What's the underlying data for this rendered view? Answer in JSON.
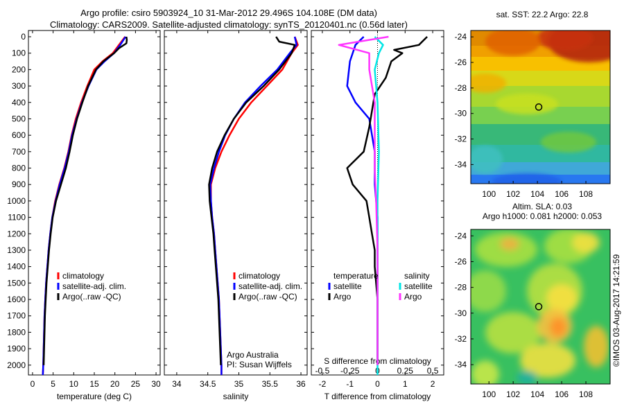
{
  "titles": {
    "line1": "Argo profile: csiro 5903924_10 31-Mar-2012 29.496S 104.108E (DM data)",
    "line2": "Climatology: CARS2009. Satellite-adjusted climatology: synTS_20120401.nc (0.56d later)"
  },
  "colors": {
    "climatology": "#ff0000",
    "satellite": "#0000ff",
    "argo": "#000000",
    "salinity_sat": "#00e5e5",
    "salinity_argo": "#ff33ff"
  },
  "chart_data": [
    {
      "type": "line",
      "name": "temperature-profile",
      "xlabel": "temperature (deg C)",
      "ylabel": "",
      "xlim": [
        -1,
        31
      ],
      "ylim": [
        2060,
        0
      ],
      "xticks": [
        0,
        5,
        10,
        15,
        20,
        25,
        30
      ],
      "yticks": [
        0,
        100,
        200,
        300,
        400,
        500,
        600,
        700,
        800,
        900,
        1000,
        1100,
        1200,
        1300,
        1400,
        1500,
        1600,
        1700,
        1800,
        1900,
        2000
      ],
      "legend": [
        "climatology",
        "satellite-adj. clim.",
        "Argo(..raw -QC)"
      ],
      "series": [
        {
          "name": "climatology",
          "color": "#ff0000",
          "points": [
            [
              22.5,
              0
            ],
            [
              21,
              50
            ],
            [
              19.5,
              100
            ],
            [
              17,
              150
            ],
            [
              15,
              200
            ],
            [
              13.3,
              300
            ],
            [
              11.8,
              400
            ],
            [
              10.5,
              500
            ],
            [
              9.5,
              600
            ],
            [
              8.7,
              700
            ],
            [
              7.7,
              800
            ],
            [
              6.5,
              900
            ],
            [
              5.5,
              1000
            ],
            [
              4.8,
              1100
            ],
            [
              4.3,
              1200
            ],
            [
              3.9,
              1300
            ],
            [
              3.6,
              1400
            ],
            [
              3.3,
              1500
            ],
            [
              3.1,
              1600
            ],
            [
              2.9,
              1700
            ],
            [
              2.8,
              1800
            ],
            [
              2.7,
              1900
            ],
            [
              2.6,
              2000
            ],
            [
              2.5,
              2060
            ]
          ]
        },
        {
          "name": "satellite-adj. clim.",
          "color": "#0000ff",
          "points": [
            [
              22.6,
              0
            ],
            [
              21.3,
              50
            ],
            [
              19.8,
              100
            ],
            [
              17.5,
              150
            ],
            [
              15.5,
              200
            ],
            [
              13.6,
              300
            ],
            [
              12,
              400
            ],
            [
              10.7,
              500
            ],
            [
              9.6,
              600
            ],
            [
              8.8,
              700
            ],
            [
              7.8,
              800
            ],
            [
              6.6,
              900
            ],
            [
              5.6,
              1000
            ],
            [
              4.8,
              1100
            ],
            [
              4.3,
              1200
            ],
            [
              3.9,
              1300
            ],
            [
              3.6,
              1400
            ],
            [
              3.3,
              1500
            ],
            [
              3.1,
              1600
            ],
            [
              2.9,
              1700
            ],
            [
              2.8,
              1800
            ],
            [
              2.7,
              1900
            ],
            [
              2.6,
              2000
            ],
            [
              2.5,
              2060
            ]
          ]
        },
        {
          "name": "Argo(..raw -QC)",
          "color": "#000000",
          "points": [
            [
              22.8,
              0
            ],
            [
              22.9,
              20
            ],
            [
              22.8,
              40
            ],
            [
              21,
              70
            ],
            [
              19.8,
              100
            ],
            [
              17.2,
              150
            ],
            [
              15.4,
              200
            ],
            [
              13.5,
              300
            ],
            [
              12.1,
              400
            ],
            [
              10.8,
              500
            ],
            [
              9.8,
              600
            ],
            [
              9,
              700
            ],
            [
              8.1,
              800
            ],
            [
              6.9,
              900
            ],
            [
              5.7,
              1000
            ],
            [
              4.9,
              1100
            ],
            [
              4.4,
              1200
            ],
            [
              4,
              1300
            ],
            [
              3.7,
              1400
            ],
            [
              3.4,
              1500
            ],
            [
              3.2,
              1600
            ],
            [
              3,
              1700
            ],
            [
              2.9,
              1800
            ],
            [
              2.8,
              1900
            ],
            [
              2.7,
              2000
            ]
          ]
        }
      ]
    },
    {
      "type": "line",
      "name": "salinity-profile",
      "xlabel": "salinity",
      "xlim": [
        33.8,
        36.1
      ],
      "ylim": [
        2060,
        0
      ],
      "xticks": [
        34,
        34.5,
        35,
        35.5,
        36
      ],
      "xtick_labels": [
        "34",
        "34.5",
        "35",
        "35.5",
        "36"
      ],
      "legend": [
        "climatology",
        "satellite-adj. clim.",
        "Argo(..raw -QC)"
      ],
      "annotation": [
        "Argo Australia",
        "PI: Susan Wijffels"
      ],
      "series": [
        {
          "name": "climatology",
          "color": "#ff0000",
          "points": [
            [
              35.9,
              0
            ],
            [
              35.95,
              50
            ],
            [
              35.85,
              100
            ],
            [
              35.7,
              200
            ],
            [
              35.45,
              300
            ],
            [
              35.2,
              400
            ],
            [
              35,
              500
            ],
            [
              34.85,
              600
            ],
            [
              34.72,
              700
            ],
            [
              34.62,
              800
            ],
            [
              34.55,
              900
            ],
            [
              34.55,
              1000
            ],
            [
              34.57,
              1100
            ],
            [
              34.6,
              1200
            ],
            [
              34.62,
              1300
            ],
            [
              34.64,
              1400
            ],
            [
              34.66,
              1500
            ],
            [
              34.68,
              1600
            ],
            [
              34.69,
              1700
            ],
            [
              34.7,
              1800
            ],
            [
              34.71,
              1900
            ],
            [
              34.72,
              2000
            ],
            [
              34.72,
              2060
            ]
          ]
        },
        {
          "name": "satellite-adj. clim.",
          "color": "#0000ff",
          "points": [
            [
              35.9,
              0
            ],
            [
              35.93,
              50
            ],
            [
              35.82,
              100
            ],
            [
              35.62,
              200
            ],
            [
              35.35,
              300
            ],
            [
              35.1,
              400
            ],
            [
              34.92,
              500
            ],
            [
              34.78,
              600
            ],
            [
              34.68,
              700
            ],
            [
              34.6,
              800
            ],
            [
              34.54,
              900
            ],
            [
              34.55,
              1000
            ],
            [
              34.57,
              1100
            ],
            [
              34.6,
              1200
            ],
            [
              34.62,
              1300
            ],
            [
              34.64,
              1400
            ],
            [
              34.66,
              1500
            ],
            [
              34.68,
              1600
            ],
            [
              34.69,
              1700
            ],
            [
              34.7,
              1800
            ],
            [
              34.71,
              1900
            ],
            [
              34.72,
              2000
            ],
            [
              34.72,
              2060
            ]
          ]
        },
        {
          "name": "Argo(..raw -QC)",
          "color": "#000000",
          "points": [
            [
              35.6,
              0
            ],
            [
              35.65,
              30
            ],
            [
              35.9,
              50
            ],
            [
              35.85,
              100
            ],
            [
              35.65,
              200
            ],
            [
              35.4,
              300
            ],
            [
              35.12,
              400
            ],
            [
              34.92,
              500
            ],
            [
              34.77,
              600
            ],
            [
              34.65,
              700
            ],
            [
              34.57,
              800
            ],
            [
              34.52,
              900
            ],
            [
              34.53,
              1000
            ],
            [
              34.56,
              1100
            ],
            [
              34.59,
              1200
            ],
            [
              34.61,
              1300
            ],
            [
              34.63,
              1400
            ],
            [
              34.65,
              1500
            ],
            [
              34.67,
              1600
            ],
            [
              34.68,
              1700
            ],
            [
              34.69,
              1800
            ],
            [
              34.7,
              1900
            ],
            [
              34.71,
              2000
            ]
          ]
        }
      ]
    },
    {
      "type": "line",
      "name": "difference-profile",
      "xlabel": "T difference from climatology",
      "top_label": "S difference from climatology",
      "xlim": [
        -2.4,
        2.4
      ],
      "ylim": [
        2060,
        0
      ],
      "xticks_bottom": [
        -2,
        -1,
        0,
        1,
        2
      ],
      "xticks_top": [
        -0.5,
        -0.25,
        0,
        0.25,
        0.5
      ],
      "xticks_top_labels": [
        "-0.5",
        "-0.25",
        "0",
        "0.25",
        "0.5"
      ],
      "legend_temperature": {
        "title": "temperature",
        "items": [
          "satellite",
          "Argo"
        ]
      },
      "legend_salinity": {
        "title": "salinity",
        "items": [
          "satellite",
          "Argo"
        ]
      },
      "series": [
        {
          "name": "temperature satellite",
          "color": "#0000ff",
          "points": [
            [
              -0.5,
              0
            ],
            [
              -0.8,
              50
            ],
            [
              -1,
              150
            ],
            [
              -1.1,
              300
            ],
            [
              -0.8,
              400
            ],
            [
              -0.3,
              500
            ],
            [
              -0.1,
              700
            ],
            [
              -0.1,
              900
            ],
            [
              0,
              1100
            ],
            [
              0,
              1500
            ],
            [
              0,
              2000
            ]
          ]
        },
        {
          "name": "temperature Argo",
          "color": "#000000",
          "points": [
            [
              1.8,
              0
            ],
            [
              1.5,
              50
            ],
            [
              0.6,
              80
            ],
            [
              0.9,
              100
            ],
            [
              0.5,
              150
            ],
            [
              0.3,
              250
            ],
            [
              -0.1,
              350
            ],
            [
              -0.3,
              550
            ],
            [
              -0.5,
              700
            ],
            [
              -1.1,
              800
            ],
            [
              -0.9,
              900
            ],
            [
              -0.4,
              1000
            ],
            [
              -0.3,
              1100
            ],
            [
              -0.2,
              1200
            ],
            [
              -0.1,
              1300
            ],
            [
              -0.1,
              1400
            ],
            [
              0,
              1600
            ],
            [
              0,
              2000
            ]
          ]
        },
        {
          "name": "salinity satellite",
          "color": "#00e5e5",
          "points": [
            [
              -0.1,
              0
            ],
            [
              0.2,
              50
            ],
            [
              0.05,
              100
            ],
            [
              -0.1,
              200
            ],
            [
              0,
              400
            ],
            [
              0.05,
              700
            ],
            [
              0,
              1000
            ],
            [
              0,
              2060
            ]
          ]
        },
        {
          "name": "salinity Argo",
          "color": "#ff33ff",
          "points": [
            [
              0.4,
              0
            ],
            [
              -1.4,
              50
            ],
            [
              -0.3,
              100
            ],
            [
              -0.3,
              200
            ],
            [
              -0.1,
              400
            ],
            [
              -0.1,
              800
            ],
            [
              -0.05,
              1000
            ],
            [
              0,
              1300
            ],
            [
              0,
              2000
            ]
          ]
        }
      ]
    },
    {
      "type": "heatmap",
      "name": "sst-map",
      "title": "sat. SST: 22.2  Argo: 22.8",
      "xlim": [
        98.5,
        110
      ],
      "ylim": [
        -35.5,
        -23.5
      ],
      "xticks": [
        100,
        102,
        104,
        106,
        108
      ],
      "yticks": [
        -24,
        -26,
        -28,
        -30,
        -32,
        -34
      ],
      "marker": {
        "lon": 104.108,
        "lat": -29.496
      }
    },
    {
      "type": "heatmap",
      "name": "sla-map",
      "title_line1": "Altim. SLA: 0.03",
      "title_line2": "Argo h1000: 0.081  h2000: 0.053",
      "xlim": [
        98.5,
        110
      ],
      "ylim": [
        -35.5,
        -23.5
      ],
      "xticks": [
        100,
        102,
        104,
        106,
        108
      ],
      "yticks": [
        -24,
        -26,
        -28,
        -30,
        -32,
        -34
      ],
      "marker": {
        "lon": 104.108,
        "lat": -29.496
      }
    }
  ],
  "credit": "©IMOS 03-Aug-2017 14:21:59"
}
